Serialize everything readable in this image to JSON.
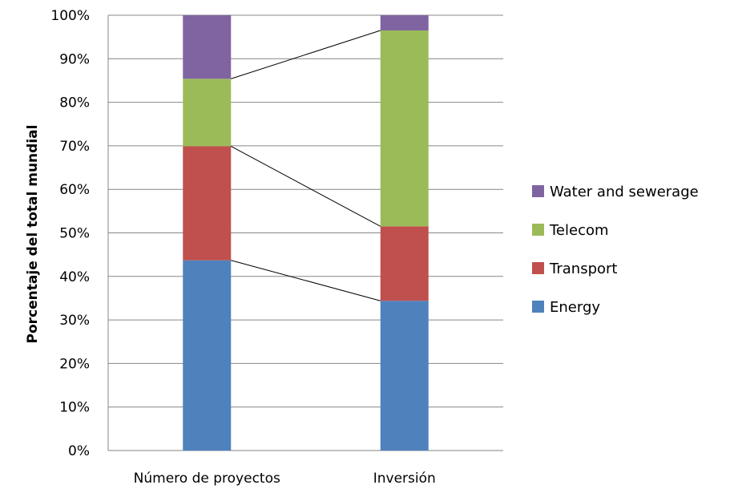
{
  "chart_data": {
    "type": "bar",
    "stacked": true,
    "percent_stacked": true,
    "categories": [
      "Número de proyectos",
      "Inversión"
    ],
    "ylabel": "Porcentaje del total mundial",
    "xlabel": "",
    "ylim": [
      0,
      100
    ],
    "y_ticks": [
      "0%",
      "10%",
      "20%",
      "30%",
      "40%",
      "50%",
      "60%",
      "70%",
      "80%",
      "90%",
      "100%"
    ],
    "grid": true,
    "legend_position": "right",
    "series": [
      {
        "name": "Energy",
        "color": "#4f81bd",
        "values": [
          43.7,
          34.4
        ]
      },
      {
        "name": "Transport",
        "color": "#c0504d",
        "values": [
          26.2,
          17.1
        ]
      },
      {
        "name": "Telecom",
        "color": "#9bbb59",
        "values": [
          15.5,
          45.0
        ]
      },
      {
        "name": "Water and sewerage",
        "color": "#8064a2",
        "values": [
          14.6,
          3.5
        ]
      }
    ],
    "connector_lines": true
  }
}
